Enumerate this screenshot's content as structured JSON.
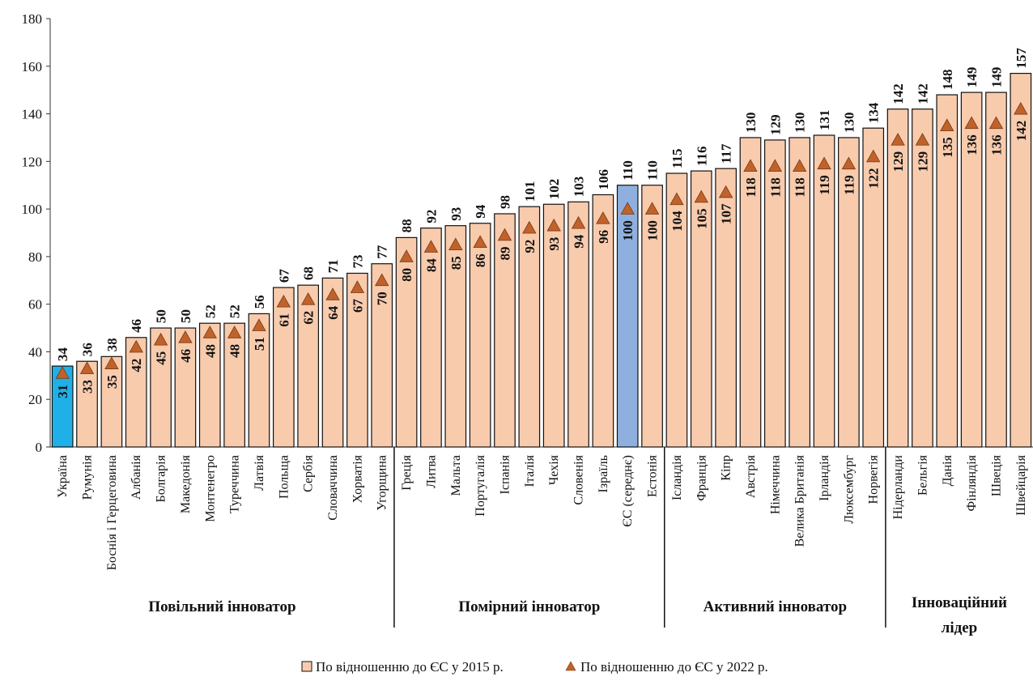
{
  "chart_data": {
    "type": "bar",
    "ylim": [
      0,
      180
    ],
    "yticks": [
      0,
      20,
      40,
      60,
      80,
      100,
      120,
      140,
      160,
      180
    ],
    "grid": false,
    "legend_position": "bottom",
    "categories": [
      "Україна",
      "Румунія",
      "Боснія і Герцеговина",
      "Албанія",
      "Болгарія",
      "Македонія",
      "Монтенегро",
      "Туреччина",
      "Латвія",
      "Польща",
      "Сербія",
      "Словаччина",
      "Хорватія",
      "Угорщина",
      "Греція",
      "Литва",
      "Мальта",
      "Португалія",
      "Іспанія",
      "Італія",
      "Чехія",
      "Словенія",
      "Ізраїль",
      "ЄС (середнє)",
      "Естонія",
      "Ісландія",
      "Франція",
      "Кіпр",
      "Австрія",
      "Німеччина",
      "Велика Британія",
      "Ірландія",
      "Люксембург",
      "Норвегія",
      "Нідерланди",
      "Бельгія",
      "Данія",
      "Фінляндія",
      "Швеція",
      "Швейцарія"
    ],
    "series": [
      {
        "name": "По відношенню до ЄС у 2015 р.",
        "type": "bar",
        "color": "#f8cbad",
        "values": [
          34,
          36,
          38,
          46,
          50,
          50,
          52,
          52,
          56,
          67,
          68,
          71,
          73,
          77,
          88,
          92,
          93,
          94,
          98,
          101,
          102,
          103,
          106,
          110,
          110,
          115,
          116,
          117,
          130,
          129,
          130,
          131,
          130,
          134,
          142,
          142,
          148,
          149,
          149,
          157
        ]
      },
      {
        "name": "По відношенню до ЄС у 2022 р.",
        "type": "marker",
        "color": "#c0622a",
        "values": [
          31,
          33,
          35,
          42,
          45,
          46,
          48,
          48,
          51,
          61,
          62,
          64,
          67,
          70,
          80,
          84,
          85,
          86,
          89,
          92,
          93,
          94,
          96,
          100,
          100,
          104,
          105,
          107,
          118,
          118,
          118,
          119,
          119,
          122,
          129,
          129,
          135,
          136,
          136,
          142
        ]
      }
    ],
    "highlight": [
      {
        "index": 0,
        "color": "#1fb0e8"
      },
      {
        "index": 23,
        "color": "#8fb0df"
      }
    ],
    "groups": [
      {
        "label": "Повільний інноватор",
        "start": 0,
        "end": 13
      },
      {
        "label": "Помірний інноватор",
        "start": 14,
        "end": 24
      },
      {
        "label": "Активний інноватор",
        "start": 25,
        "end": 33
      },
      {
        "label": "Інноваційний лідер",
        "start": 34,
        "end": 39
      }
    ]
  }
}
